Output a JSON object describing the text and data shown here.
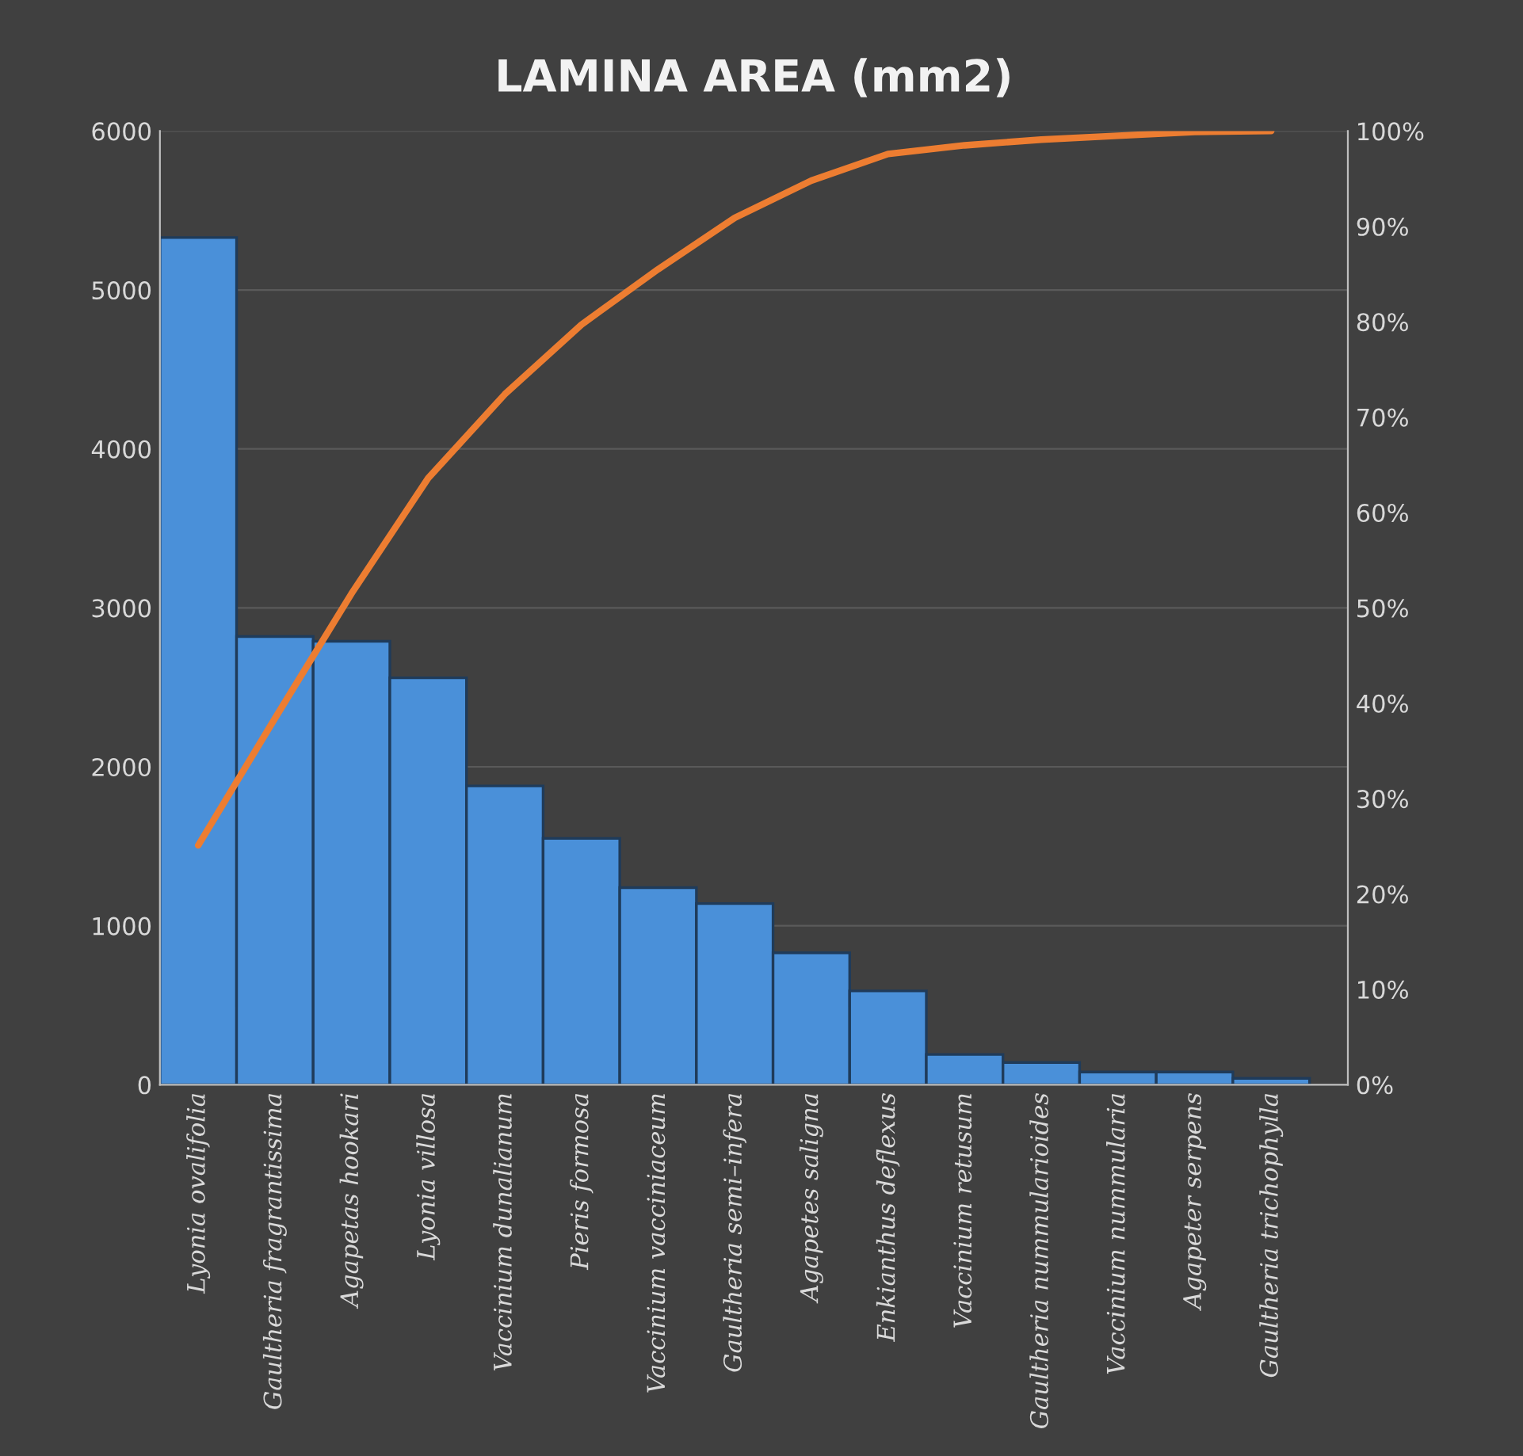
{
  "chart_data": {
    "type": "bar",
    "title": "LAMINA AREA (mm2)",
    "categories": [
      "Lyonia ovalifolia",
      "Gaultheria fragrantissima",
      "Agapetas hookari",
      "Lyonia villosa",
      "Vaccinium dunalianum",
      "Pieris formosa",
      "Vaccinium vacciniaceum",
      "Gaultheria semi–infera",
      "Agapetes saligna",
      "Enkianthus deflexus",
      "Vaccinium retusum",
      "Gaultheria nummularioides",
      "Vaccinium nummularia",
      "Agapeter serpens",
      "Gaultheria trichophylla"
    ],
    "series": [
      {
        "color": "#4a90d9",
        "values": [
          5330,
          2820,
          2790,
          2560,
          1880,
          1550,
          1240,
          1140,
          830,
          590,
          190,
          140,
          80,
          80,
          40
        ]
      },
      {
        "type": "line",
        "axis": "y2",
        "color": "#ed7d31",
        "values": [
          25.1,
          38.4,
          51.5,
          63.6,
          72.4,
          79.7,
          85.5,
          90.9,
          94.8,
          97.6,
          98.5,
          99.1,
          99.5,
          99.9,
          100
        ]
      }
    ],
    "ylim": [
      0,
      6000
    ],
    "yticks": [
      0,
      1000,
      2000,
      3000,
      4000,
      5000,
      6000
    ],
    "y2lim": [
      0,
      100
    ],
    "y2ticks": [
      {
        "value": 0,
        "label": "0%"
      },
      {
        "value": 10,
        "label": "10%"
      },
      {
        "value": 20,
        "label": "20%"
      },
      {
        "value": 30,
        "label": "30%"
      },
      {
        "value": 40,
        "label": "40%"
      },
      {
        "value": 50,
        "label": "50%"
      },
      {
        "value": 60,
        "label": "60%"
      },
      {
        "value": 70,
        "label": "70%"
      },
      {
        "value": 80,
        "label": "80%"
      },
      {
        "value": 90,
        "label": "90%"
      },
      {
        "value": 100,
        "label": "100%"
      }
    ],
    "grid": "y",
    "legend": false
  }
}
